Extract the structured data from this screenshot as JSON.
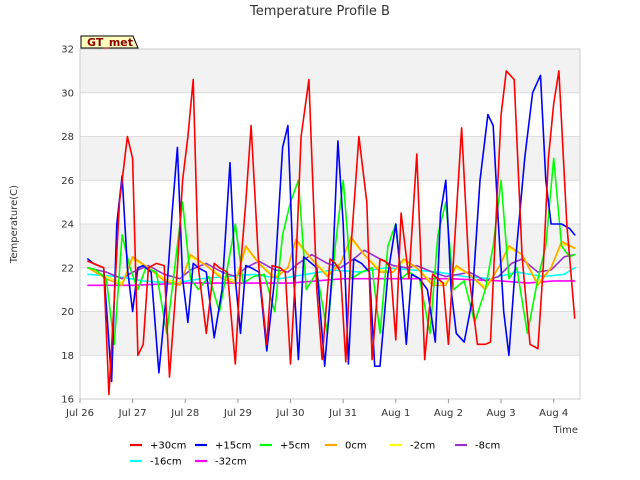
{
  "chart_data": {
    "type": "line",
    "title": "Temperature Profile B",
    "xlabel": "Time",
    "ylabel": "Temperature(C)",
    "badge": "GT_met",
    "ylim": [
      16,
      32
    ],
    "yticks": [
      16,
      18,
      20,
      22,
      24,
      26,
      28,
      30,
      32
    ],
    "xlim": [
      0,
      9.5
    ],
    "xticks": [
      0,
      1,
      2,
      3,
      4,
      5,
      6,
      7,
      8,
      9
    ],
    "xtick_labels": [
      "Jul 26",
      "Jul 27",
      "Jul 28",
      "Jul 29",
      "Jul 30",
      "Jul 31",
      "Aug 1",
      "Aug 2",
      "Aug 3",
      "Aug 4"
    ],
    "x_units": "days since Jul 26",
    "grid": true,
    "legend_position": "bottom",
    "colors": {
      "+30cm": "#ff0000",
      "+15cm": "#0000ff",
      "+5cm": "#00ff00",
      "0cm": "#ffa500",
      "-2cm": "#ffff00",
      "-8cm": "#9932cc",
      "-16cm": "#00ffff",
      "-32cm": "#ff00ff"
    },
    "series": [
      {
        "name": "+30cm",
        "x": [
          0.15,
          0.25,
          0.45,
          0.55,
          0.65,
          0.75,
          0.9,
          1.0,
          1.1,
          1.2,
          1.3,
          1.45,
          1.6,
          1.7,
          1.85,
          1.95,
          2.05,
          2.15,
          2.25,
          2.4,
          2.55,
          2.65,
          2.8,
          2.95,
          3.05,
          3.15,
          3.25,
          3.4,
          3.55,
          3.65,
          3.8,
          3.9,
          4.0,
          4.1,
          4.2,
          4.35,
          4.5,
          4.6,
          4.75,
          4.85,
          4.95,
          5.05,
          5.15,
          5.3,
          5.45,
          5.55,
          5.7,
          5.8,
          5.9,
          6.0,
          6.1,
          6.25,
          6.4,
          6.55,
          6.7,
          6.8,
          6.9,
          7.0,
          7.1,
          7.25,
          7.4,
          7.55,
          7.7,
          7.8,
          7.9,
          8.0,
          8.1,
          8.25,
          8.4,
          8.55,
          8.7,
          8.8,
          8.9,
          9.0,
          9.1,
          9.25,
          9.4
        ],
        "y": [
          22.3,
          22.2,
          22.0,
          16.2,
          20.5,
          25.0,
          28.0,
          27.0,
          18.0,
          18.5,
          22.0,
          22.2,
          22.1,
          17.0,
          22.0,
          26.0,
          28.0,
          30.6,
          22.0,
          19.0,
          22.2,
          22.0,
          21.8,
          17.6,
          22.0,
          25.0,
          28.5,
          22.0,
          18.5,
          22.1,
          22.0,
          21.8,
          17.6,
          22.0,
          28.0,
          30.6,
          21.0,
          17.8,
          22.4,
          22.2,
          21.8,
          17.7,
          23.0,
          28.0,
          25.0,
          17.8,
          22.4,
          22.3,
          22.0,
          18.7,
          24.5,
          21.5,
          27.2,
          17.8,
          21.7,
          21.5,
          21.3,
          18.5,
          22.5,
          28.4,
          21.5,
          18.5,
          18.5,
          18.6,
          24.0,
          29.0,
          31.0,
          30.6,
          22.5,
          18.5,
          18.3,
          22.0,
          27.0,
          29.5,
          31.0,
          24.0,
          19.7
        ]
      },
      {
        "name": "+15cm",
        "x": [
          0.15,
          0.25,
          0.45,
          0.6,
          0.7,
          0.8,
          0.9,
          1.0,
          1.1,
          1.2,
          1.35,
          1.5,
          1.65,
          1.75,
          1.85,
          1.95,
          2.05,
          2.15,
          2.25,
          2.4,
          2.55,
          2.7,
          2.85,
          2.95,
          3.05,
          3.15,
          3.25,
          3.4,
          3.55,
          3.7,
          3.85,
          3.95,
          4.05,
          4.15,
          4.25,
          4.35,
          4.5,
          4.65,
          4.8,
          4.9,
          5.0,
          5.1,
          5.2,
          5.35,
          5.5,
          5.6,
          5.7,
          5.85,
          6.0,
          6.1,
          6.2,
          6.3,
          6.45,
          6.6,
          6.75,
          6.85,
          6.95,
          7.05,
          7.15,
          7.3,
          7.45,
          7.6,
          7.75,
          7.85,
          7.95,
          8.05,
          8.15,
          8.3,
          8.45,
          8.6,
          8.75,
          8.85,
          8.95,
          9.05,
          9.15,
          9.3,
          9.4
        ],
        "y": [
          22.4,
          22.2,
          22.0,
          16.8,
          24.0,
          26.2,
          22.0,
          20.0,
          22.0,
          22.1,
          21.8,
          17.2,
          21.0,
          24.5,
          27.5,
          21.5,
          19.5,
          22.2,
          22.0,
          21.8,
          18.8,
          21.0,
          26.8,
          21.5,
          19.0,
          22.1,
          22.0,
          21.8,
          18.2,
          21.5,
          27.5,
          28.5,
          22.0,
          17.8,
          22.5,
          22.3,
          22.0,
          17.5,
          22.0,
          27.8,
          24.0,
          17.6,
          22.4,
          22.2,
          21.8,
          17.5,
          17.5,
          21.7,
          24.0,
          21.5,
          18.5,
          21.7,
          21.5,
          21.0,
          18.6,
          24.5,
          26.0,
          21.0,
          19.0,
          18.6,
          20.5,
          26.0,
          29.0,
          28.5,
          24.0,
          20.0,
          18.0,
          23.0,
          27.0,
          30.0,
          30.8,
          26.0,
          24.0,
          24.0,
          24.0,
          23.8,
          23.5
        ]
      },
      {
        "name": "+5cm",
        "x": [
          0.15,
          0.3,
          0.5,
          0.65,
          0.8,
          0.95,
          1.1,
          1.25,
          1.45,
          1.65,
          1.8,
          1.95,
          2.1,
          2.25,
          2.45,
          2.65,
          2.8,
          2.95,
          3.1,
          3.3,
          3.5,
          3.7,
          3.85,
          4.0,
          4.15,
          4.3,
          4.5,
          4.7,
          4.85,
          5.0,
          5.15,
          5.35,
          5.55,
          5.7,
          5.85,
          6.0,
          6.1,
          6.25,
          6.45,
          6.65,
          6.8,
          6.95,
          7.1,
          7.3,
          7.5,
          7.7,
          7.85,
          8.0,
          8.15,
          8.3,
          8.5,
          8.7,
          8.85,
          9.0,
          9.15,
          9.3,
          9.4
        ],
        "y": [
          22.0,
          21.9,
          21.5,
          18.5,
          23.5,
          22.0,
          21.0,
          22.0,
          21.8,
          19.0,
          22.0,
          25.0,
          21.5,
          21.0,
          21.6,
          20.0,
          22.0,
          24.0,
          21.3,
          21.6,
          21.7,
          20.0,
          23.5,
          25.0,
          26.0,
          21.0,
          21.8,
          19.0,
          23.0,
          26.0,
          21.5,
          21.8,
          22.0,
          19.0,
          23.0,
          24.0,
          21.5,
          21.8,
          21.5,
          19.0,
          23.5,
          25.0,
          21.0,
          21.4,
          19.5,
          21.0,
          23.0,
          26.0,
          21.5,
          22.0,
          19.0,
          21.5,
          23.0,
          27.0,
          23.0,
          22.5,
          22.6
        ]
      },
      {
        "name": "0cm",
        "x": [
          0.15,
          0.5,
          0.8,
          1.0,
          1.3,
          1.6,
          1.9,
          2.1,
          2.4,
          2.7,
          2.95,
          3.15,
          3.4,
          3.7,
          3.95,
          4.1,
          4.4,
          4.7,
          4.95,
          5.15,
          5.4,
          5.7,
          5.95,
          6.15,
          6.4,
          6.7,
          6.95,
          7.15,
          7.4,
          7.7,
          7.95,
          8.15,
          8.4,
          8.7,
          8.95,
          9.15,
          9.4
        ],
        "y": [
          22.0,
          21.5,
          21.2,
          22.5,
          22.0,
          21.4,
          21.2,
          22.6,
          22.1,
          21.5,
          21.3,
          23.0,
          22.2,
          21.5,
          22.0,
          23.3,
          22.4,
          21.6,
          22.2,
          23.4,
          22.6,
          21.8,
          21.8,
          22.4,
          22.0,
          21.2,
          21.2,
          22.1,
          21.7,
          21.0,
          22.0,
          23.0,
          22.6,
          21.2,
          22.0,
          23.2,
          22.9
        ]
      },
      {
        "name": "-2cm",
        "x": [
          0.15,
          0.5,
          0.8,
          1.0,
          1.3,
          1.6,
          1.9,
          2.1,
          2.4,
          2.7,
          2.95,
          3.15,
          3.4,
          3.7,
          3.95,
          4.1,
          4.4,
          4.7,
          4.95,
          5.15,
          5.4,
          5.7,
          5.95,
          6.15,
          6.4,
          6.7,
          6.95,
          7.15,
          7.4,
          7.7,
          7.95,
          8.15,
          8.4,
          8.7,
          8.95,
          9.15,
          9.4
        ],
        "y": [
          22.0,
          21.6,
          21.3,
          22.4,
          22.0,
          21.5,
          21.3,
          22.5,
          22.1,
          21.6,
          21.4,
          22.9,
          22.2,
          21.6,
          22.0,
          23.2,
          22.4,
          21.7,
          22.2,
          23.3,
          22.6,
          21.9,
          21.8,
          22.3,
          22.0,
          21.3,
          21.3,
          22.0,
          21.7,
          21.1,
          22.0,
          22.9,
          22.6,
          21.3,
          22.0,
          23.1,
          22.9
        ]
      },
      {
        "name": "-8cm",
        "x": [
          0.15,
          0.5,
          0.8,
          1.0,
          1.3,
          1.6,
          1.9,
          2.1,
          2.4,
          2.7,
          2.95,
          3.15,
          3.4,
          3.7,
          3.95,
          4.15,
          4.4,
          4.7,
          4.95,
          5.2,
          5.4,
          5.7,
          5.95,
          6.2,
          6.4,
          6.7,
          6.95,
          7.2,
          7.4,
          7.7,
          7.95,
          8.2,
          8.4,
          8.7,
          8.95,
          9.2,
          9.4
        ],
        "y": [
          22.0,
          21.8,
          21.5,
          21.8,
          22.1,
          21.7,
          21.5,
          21.9,
          22.2,
          21.8,
          21.6,
          22.0,
          22.3,
          21.9,
          21.8,
          22.2,
          22.6,
          22.2,
          22.0,
          22.4,
          22.8,
          22.4,
          22.1,
          22.0,
          22.1,
          21.8,
          21.6,
          21.7,
          21.8,
          21.4,
          21.6,
          22.2,
          22.4,
          21.8,
          21.9,
          22.5,
          22.6
        ]
      },
      {
        "name": "-16cm",
        "x": [
          0.15,
          0.7,
          1.2,
          1.8,
          2.3,
          2.8,
          3.3,
          3.8,
          4.3,
          4.8,
          5.3,
          5.8,
          6.3,
          6.8,
          7.3,
          7.8,
          8.3,
          8.8,
          9.2,
          9.4
        ],
        "y": [
          21.7,
          21.6,
          21.4,
          21.3,
          21.5,
          21.6,
          21.7,
          21.5,
          21.7,
          21.9,
          21.8,
          22.0,
          21.9,
          21.8,
          21.6,
          21.5,
          21.8,
          21.6,
          21.7,
          22.0
        ]
      },
      {
        "name": "-32cm",
        "x": [
          0.15,
          1.0,
          2.0,
          3.0,
          4.0,
          5.0,
          6.0,
          7.0,
          8.0,
          8.5,
          9.0,
          9.4
        ],
        "y": [
          21.2,
          21.2,
          21.3,
          21.3,
          21.3,
          21.5,
          21.5,
          21.5,
          21.4,
          21.3,
          21.4,
          21.4
        ]
      }
    ]
  }
}
